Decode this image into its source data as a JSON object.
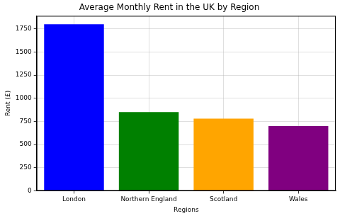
{
  "chart_data": {
    "type": "bar",
    "title": "Average Monthly Rent in the UK by Region",
    "x_label": "Regions",
    "y_label": "Rent (£)",
    "categories": [
      "London",
      "Northern England",
      "Scotland",
      "Wales"
    ],
    "values": [
      1800,
      850,
      780,
      700
    ],
    "colors": [
      "#0000ff",
      "#008000",
      "#ffa500",
      "#800080"
    ],
    "ylim": [
      0,
      1890
    ],
    "yticks": [
      0,
      250,
      500,
      750,
      1000,
      1250,
      1500,
      1750
    ],
    "grid": true
  }
}
